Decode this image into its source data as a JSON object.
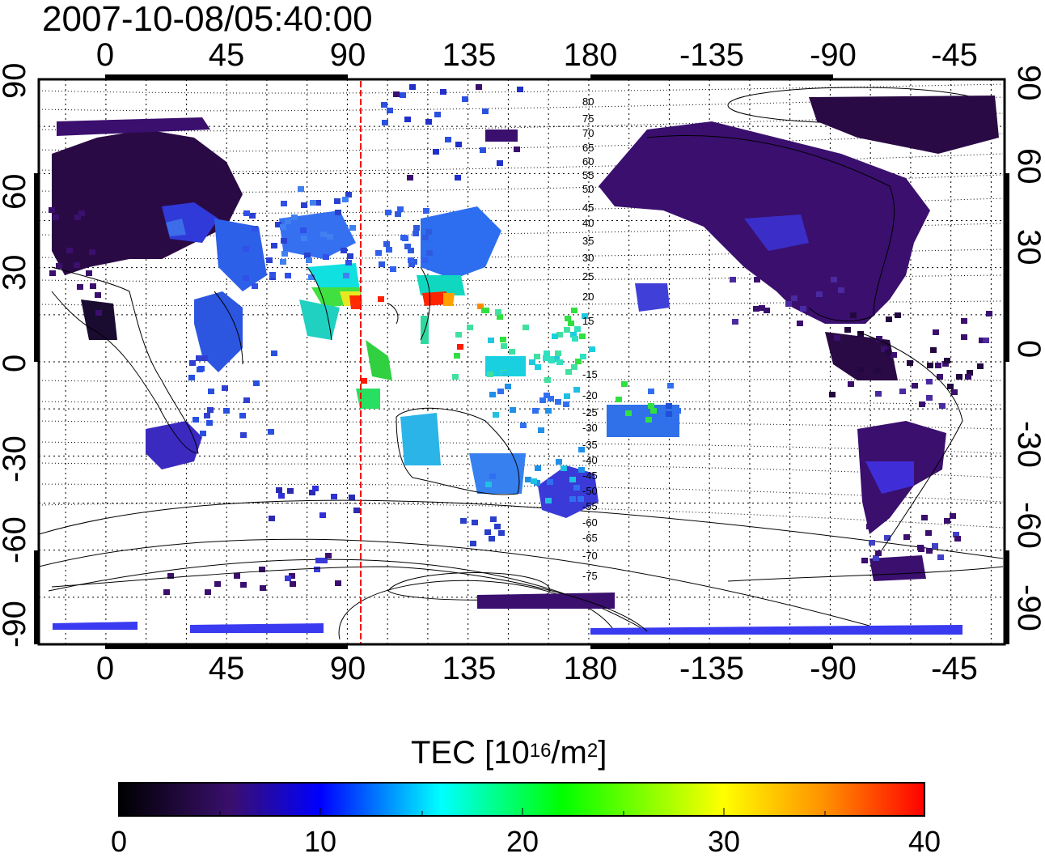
{
  "timestamp": "2007-10-08/05:40:00",
  "top_axis_ticks": [
    "0",
    "45",
    "90",
    "135",
    "180",
    "-135",
    "-90",
    "-45"
  ],
  "bottom_axis_ticks": [
    "0",
    "45",
    "90",
    "135",
    "180",
    "-135",
    "-90",
    "-45"
  ],
  "left_axis_ticks": [
    "90",
    "60",
    "30",
    "0",
    "-30",
    "-60",
    "-90"
  ],
  "right_axis_ticks": [
    "90",
    "60",
    "30",
    "0",
    "-30",
    "-60",
    "-90"
  ],
  "colorbar": {
    "title_prefix": "TEC  [10",
    "title_exp1": "16",
    "title_mid": "/m",
    "title_exp2": "2",
    "title_suffix": "]",
    "ticks": [
      "0",
      "10",
      "20",
      "30",
      "40"
    ],
    "range": [
      0,
      40
    ],
    "colors": [
      "#000000",
      "#3a0f6e",
      "#0000ff",
      "#00ffff",
      "#00ff00",
      "#ffff00",
      "#ff8c00",
      "#ff0000"
    ]
  },
  "map": {
    "lon_range": [
      -25,
      335
    ],
    "lat_range": [
      -90,
      90
    ],
    "meridian_marker_lon": 95,
    "meridian_marker_color": "#ff0000",
    "contour_labels": [
      "80",
      "75",
      "70",
      "65",
      "60",
      "55",
      "50",
      "45",
      "40",
      "35",
      "30",
      "25",
      "20",
      "15",
      "-15",
      "-20",
      "-25",
      "-30",
      "-35",
      "-40",
      "-45",
      "-50",
      "-55",
      "-60",
      "-65",
      "-70",
      "-75"
    ]
  }
}
